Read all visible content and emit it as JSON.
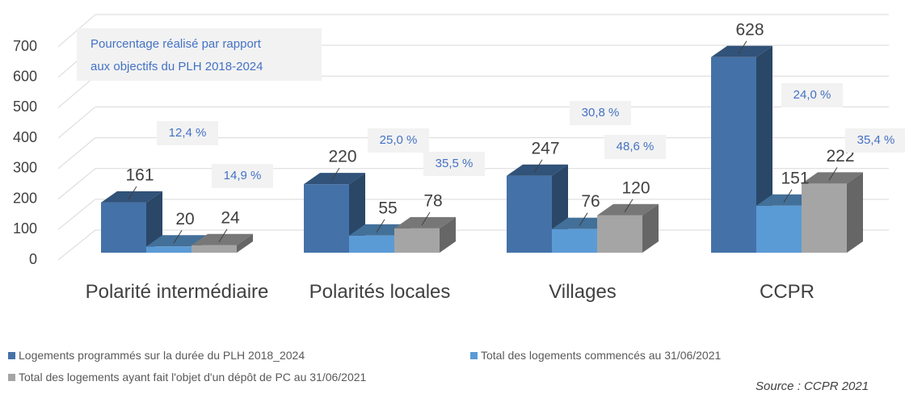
{
  "chart_data": {
    "type": "bar3d",
    "categories": [
      "Polarité intermédiaire",
      "Polarités locales",
      "Villages",
      "CCPR"
    ],
    "series": [
      {
        "name": "Logements programmés sur la durée du PLH 2018_2024",
        "color": "#4472a8",
        "values": [
          161,
          220,
          247,
          628
        ]
      },
      {
        "name": "Total des logements commencés au 31/06/2021",
        "color": "#5b9bd5",
        "values": [
          20,
          55,
          76,
          151
        ]
      },
      {
        "name": "Total des logements ayant fait l'objet d'un dépôt de PC au 31/06/2021",
        "color": "#a5a5a5",
        "values": [
          24,
          78,
          120,
          222
        ]
      }
    ],
    "ylim": [
      0,
      700
    ],
    "yticks": [
      0,
      100,
      200,
      300,
      400,
      500,
      600,
      700
    ],
    "grid": true,
    "annotation": [
      "Pourcentage  réalisé par rapport",
      "aux objectifs du PLH 2018-2024"
    ],
    "percent_labels": [
      "12,4 %",
      "14,9 %",
      "25,0 %",
      "35,5 %",
      "30,8 %",
      "48,6 %",
      "24,0 %",
      "35,4 %"
    ],
    "source": "Source : CCPR 2021"
  }
}
